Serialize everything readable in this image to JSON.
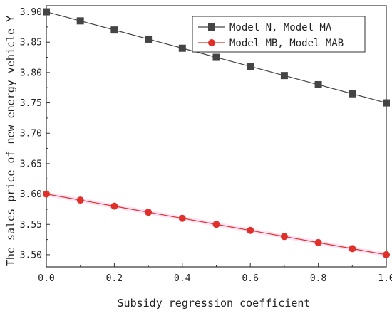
{
  "chart_data": {
    "type": "line",
    "xlabel": "Subsidy regression coefficient",
    "ylabel": "The sales price of new energy vehicle Y",
    "xlim": [
      0.0,
      1.0
    ],
    "ylim": [
      3.48,
      3.91
    ],
    "x_ticks": [
      "0.0",
      "0.2",
      "0.4",
      "0.6",
      "0.8",
      "1.0"
    ],
    "y_ticks": [
      "3.50",
      "3.55",
      "3.60",
      "3.65",
      "3.70",
      "3.75",
      "3.80",
      "3.85",
      "3.90"
    ],
    "x": [
      0.0,
      0.1,
      0.2,
      0.3,
      0.4,
      0.5,
      0.6,
      0.7,
      0.8,
      0.9,
      1.0
    ],
    "series": [
      {
        "name": "Model N, Model MA",
        "values": [
          3.9,
          3.885,
          3.87,
          3.855,
          3.84,
          3.825,
          3.81,
          3.795,
          3.78,
          3.765,
          3.75
        ],
        "color": "#444444",
        "marker": "square"
      },
      {
        "name": "Model MB, Model MAB",
        "values": [
          3.6,
          3.59,
          3.58,
          3.57,
          3.56,
          3.55,
          3.54,
          3.53,
          3.52,
          3.51,
          3.5
        ],
        "color": "#e0302a",
        "marker": "circle"
      }
    ],
    "legend_position": "top-right",
    "grid": false
  }
}
